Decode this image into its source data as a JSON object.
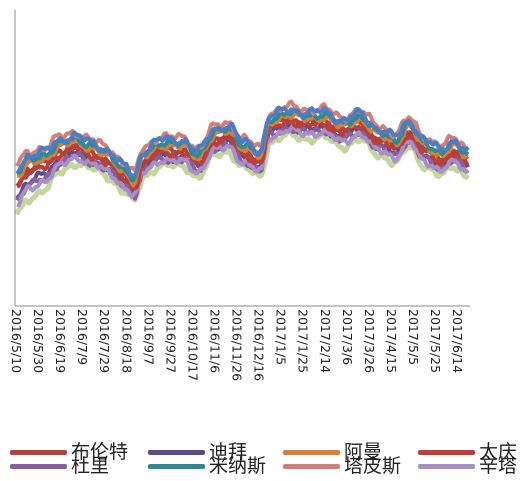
{
  "chart_data": {
    "type": "line",
    "x_tick_labels": [
      "2016/5/10",
      "2016/5/30",
      "2016/6/19",
      "2016/7/9",
      "2016/7/29",
      "2016/8/18",
      "2016/9/7",
      "2016/9/27",
      "2016/10/17",
      "2016/11/6",
      "2016/11/26",
      "2016/12/16",
      "2017/1/5",
      "2017/1/25",
      "2017/2/14",
      "2017/3/6",
      "2017/3/26",
      "2017/4/15",
      "2017/5/5",
      "2017/5/25",
      "2017/6/14"
    ],
    "x_start": "2016/5/10",
    "x_end": "2017/6/23",
    "grid": false,
    "legend_position": "bottom",
    "series": [
      {
        "name": "布伦特",
        "color": "#b5403b"
      },
      {
        "name": "迪拜",
        "color": "#5e4a85"
      },
      {
        "name": "阿曼",
        "color": "#d4803a"
      },
      {
        "name": "太庆",
        "color": "#be3d39"
      },
      {
        "name": "杜里",
        "color": "#8560a0"
      },
      {
        "name": "米纳斯",
        "color": "#2d8a94"
      },
      {
        "name": "塔皮斯",
        "color": "#d47e78"
      },
      {
        "name": "辛塔",
        "color": "#a88fc5"
      }
    ],
    "highlighted_series": [
      {
        "color": "#4a7ec4",
        "start": "2016/5/10",
        "end": "2017/6/23",
        "shape": "wavy",
        "level": "high"
      },
      {
        "color": "#c3d69b",
        "start": "2016/5/10",
        "end": "2017/6/23",
        "shape": "wavy",
        "level": "low"
      }
    ]
  }
}
